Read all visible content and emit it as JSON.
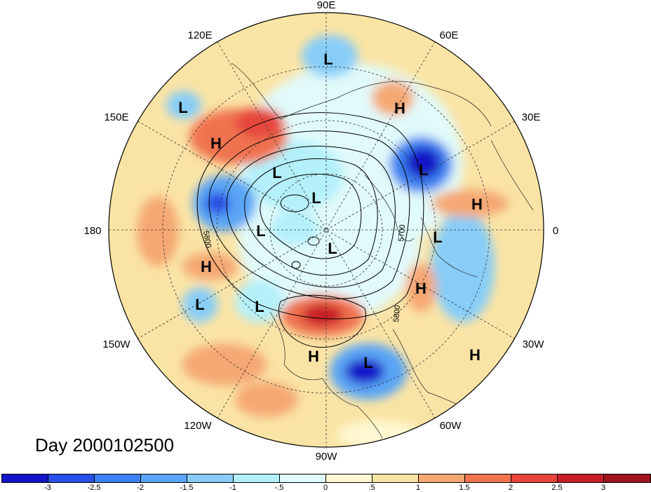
{
  "title_label": "Day 2000102500",
  "longitude_labels": {
    "deg90E": "90E",
    "deg120E": "120E",
    "deg60E": "60E",
    "deg150E": "150E",
    "deg30E": "30E",
    "deg180": "180",
    "deg0": "0",
    "deg150W": "150W",
    "deg30W": "30W",
    "deg120W": "120W",
    "deg60W": "60W",
    "deg90W": "90W"
  },
  "contour_labels": [
    "5800",
    "5700",
    "5800"
  ],
  "pressure_centers": [
    {
      "type": "L",
      "label": "L"
    },
    {
      "type": "L",
      "label": "L"
    },
    {
      "type": "H",
      "label": "H"
    },
    {
      "type": "H",
      "label": "H"
    },
    {
      "type": "L",
      "label": "L"
    },
    {
      "type": "L",
      "label": "L"
    },
    {
      "type": "L",
      "label": "L"
    },
    {
      "type": "H",
      "label": "H"
    },
    {
      "type": "L",
      "label": "L"
    },
    {
      "type": "L",
      "label": "L"
    },
    {
      "type": "L",
      "label": "L"
    },
    {
      "type": "H",
      "label": "H"
    },
    {
      "type": "H",
      "label": "H"
    },
    {
      "type": "L",
      "label": "L"
    },
    {
      "type": "L",
      "label": "L"
    },
    {
      "type": "H",
      "label": "H"
    },
    {
      "type": "L",
      "label": "L"
    },
    {
      "type": "H",
      "label": "H"
    }
  ],
  "colorbar": {
    "colors": [
      "#1414c8",
      "#2850e6",
      "#3c82f0",
      "#5aa5f5",
      "#87cdf8",
      "#b4f0fa",
      "#e1fafa",
      "#fff8d2",
      "#fae4a5",
      "#f5a873",
      "#f07350",
      "#e6463c",
      "#c81e28",
      "#a0141e"
    ],
    "ticks": [
      "-3",
      "-2.5",
      "-2",
      "-1.5",
      "-1",
      "-.5",
      "0",
      ".5",
      "1",
      "1.5",
      "2",
      "2.5",
      "3"
    ]
  }
}
